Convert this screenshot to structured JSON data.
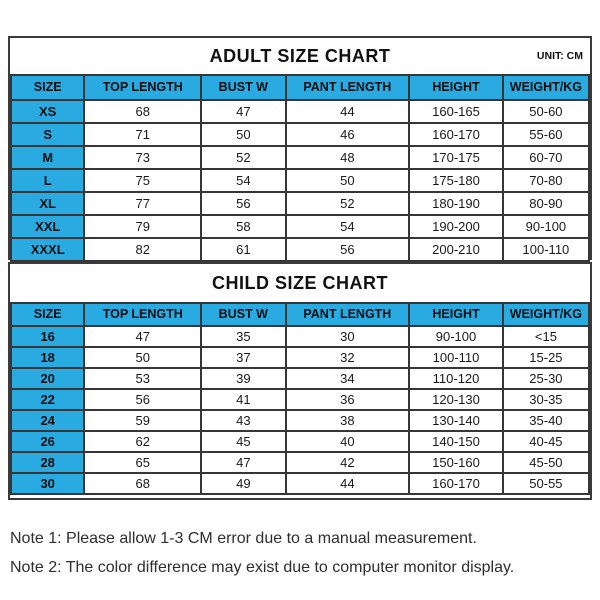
{
  "adult_chart": {
    "title": "ADULT SIZE CHART",
    "unit_label": "UNIT: CM",
    "columns": [
      "SIZE",
      "TOP LENGTH",
      "BUST W",
      "PANT LENGTH",
      "HEIGHT",
      "WEIGHT/KG"
    ],
    "rows": [
      [
        "XS",
        "68",
        "47",
        "44",
        "160-165",
        "50-60"
      ],
      [
        "S",
        "71",
        "50",
        "46",
        "160-170",
        "55-60"
      ],
      [
        "M",
        "73",
        "52",
        "48",
        "170-175",
        "60-70"
      ],
      [
        "L",
        "75",
        "54",
        "50",
        "175-180",
        "70-80"
      ],
      [
        "XL",
        "77",
        "56",
        "52",
        "180-190",
        "80-90"
      ],
      [
        "XXL",
        "79",
        "58",
        "54",
        "190-200",
        "90-100"
      ],
      [
        "XXXL",
        "82",
        "61",
        "56",
        "200-210",
        "100-110"
      ]
    ]
  },
  "child_chart": {
    "title": "CHILD SIZE CHART",
    "columns": [
      "SIZE",
      "TOP LENGTH",
      "BUST W",
      "PANT LENGTH",
      "HEIGHT",
      "WEIGHT/KG"
    ],
    "rows": [
      [
        "16",
        "47",
        "35",
        "30",
        "90-100",
        "<15"
      ],
      [
        "18",
        "50",
        "37",
        "32",
        "100-110",
        "15-25"
      ],
      [
        "20",
        "53",
        "39",
        "34",
        "110-120",
        "25-30"
      ],
      [
        "22",
        "56",
        "41",
        "36",
        "120-130",
        "30-35"
      ],
      [
        "24",
        "59",
        "43",
        "38",
        "130-140",
        "35-40"
      ],
      [
        "26",
        "62",
        "45",
        "40",
        "140-150",
        "40-45"
      ],
      [
        "28",
        "65",
        "47",
        "42",
        "150-160",
        "45-50"
      ],
      [
        "30",
        "68",
        "49",
        "44",
        "160-170",
        "50-55"
      ]
    ]
  },
  "notes": [
    "Note 1: Please allow 1-3 CM error due to a manual measurement.",
    "Note 2: The color difference may exist due to computer monitor display."
  ],
  "colors": {
    "header_bg": "#29abe2",
    "grid_border": "#363636",
    "text": "#1a1a1a"
  }
}
